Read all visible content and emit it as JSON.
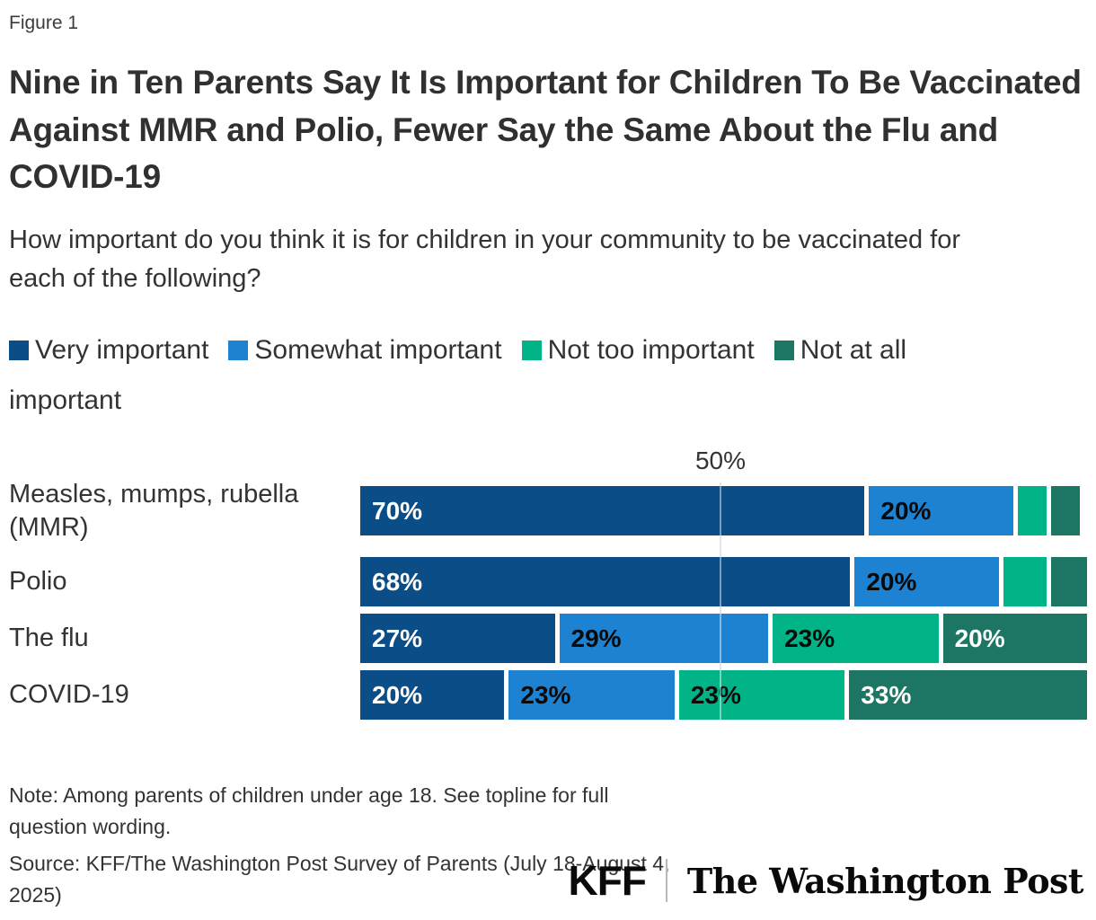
{
  "figure_label": "Figure 1",
  "title": "Nine in Ten Parents Say It Is Important for Children To Be Vaccinated Against MMR and Polio, Fewer Say the Same About the Flu and COVID-19",
  "subtitle": "How important do you think it is for children in your community to be vaccinated for each of the following?",
  "legend": {
    "items": [
      {
        "label": "Very important",
        "color": "#0b4e87"
      },
      {
        "label": "Somewhat important",
        "color": "#1e82d2"
      },
      {
        "label": "Not too important",
        "color": "#00b487"
      },
      {
        "label": "Not at all important",
        "color": "#1d7563"
      }
    ]
  },
  "chart_data": {
    "type": "bar",
    "orientation": "horizontal-stacked",
    "title": "Nine in Ten Parents Say It Is Important for Children To Be Vaccinated Against MMR and Polio, Fewer Say the Same About the Flu and COVID-19",
    "categories": [
      "Measles, mumps, rubella (MMR)",
      "Polio",
      "The flu",
      "COVID-19"
    ],
    "series": [
      {
        "name": "Very important",
        "color": "#0b4e87",
        "label_color": "#ffffff",
        "values": [
          70,
          68,
          27,
          20
        ]
      },
      {
        "name": "Somewhat important",
        "color": "#1e82d2",
        "label_color": "#0a0a0a",
        "values": [
          20,
          20,
          29,
          23
        ]
      },
      {
        "name": "Not too important",
        "color": "#00b487",
        "label_color": "#0a0a0a",
        "values": [
          4,
          6,
          23,
          23
        ]
      },
      {
        "name": "Not at all important",
        "color": "#1d7563",
        "label_color": "#ffffff",
        "values": [
          4,
          5,
          20,
          33
        ]
      }
    ],
    "data_labels": [
      [
        "70%",
        "20%",
        "",
        ""
      ],
      [
        "68%",
        "20%",
        "",
        ""
      ],
      [
        "27%",
        "29%",
        "23%",
        "20%"
      ],
      [
        "20%",
        "23%",
        "23%",
        "33%"
      ]
    ],
    "axis": {
      "min": 0,
      "max": 100,
      "gridline_value": 50,
      "gridline_label": "50%",
      "gridline_color": "#d0d0d0"
    },
    "legend_position": "top"
  },
  "note": "Note: Among parents of children under age 18. See topline for full question wording.",
  "source": "Source: KFF/The Washington Post Survey of Parents (July 18-August 4, 2025)",
  "logos": {
    "kff": "KFF",
    "washington_post": "The Washington Post"
  }
}
